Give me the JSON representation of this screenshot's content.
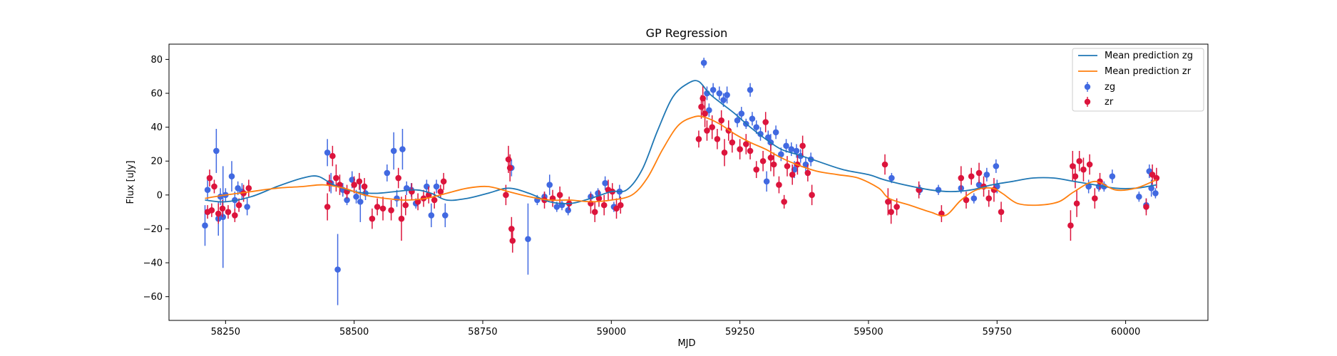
{
  "chart_data": {
    "type": "scatter",
    "title": "GP Regression",
    "xlabel": "MJD",
    "ylabel": "Flux [uJy]",
    "xlim": [
      58140,
      60160
    ],
    "ylim": [
      -74,
      89
    ],
    "xticks": [
      58250,
      58500,
      58750,
      59000,
      59250,
      59500,
      59750,
      60000
    ],
    "yticks": [
      -60,
      -40,
      -20,
      0,
      20,
      40,
      60,
      80
    ],
    "legend_position": "top-right",
    "grid": false,
    "colors": {
      "mean_zg": "#1f77b4",
      "mean_zr": "#ff7f0e",
      "zg": "#4169e1",
      "zr": "#dc143c"
    },
    "lines": [
      {
        "name": "Mean prediction zg",
        "color": "#1f77b4",
        "x": [
          58210,
          58250,
          58300,
          58350,
          58400,
          58430,
          58460,
          58500,
          58540,
          58580,
          58620,
          58650,
          58680,
          58720,
          58760,
          58800,
          58840,
          58880,
          58920,
          58960,
          59000,
          59030,
          59060,
          59090,
          59120,
          59150,
          59170,
          59190,
          59210,
          59240,
          59270,
          59300,
          59330,
          59360,
          59400,
          59450,
          59500,
          59530,
          59570,
          59620,
          59660,
          59700,
          59740,
          59780,
          59820,
          59860,
          59900,
          59940,
          59980,
          60020,
          60060
        ],
        "y": [
          -3,
          -4,
          -1,
          5,
          10,
          11,
          6,
          2,
          1,
          2,
          3,
          1,
          -3,
          -2,
          1,
          4,
          1,
          -4,
          -5,
          -2,
          2,
          3,
          15,
          38,
          58,
          66,
          67,
          60,
          55,
          48,
          40,
          33,
          27,
          24,
          20,
          15,
          12,
          9,
          6,
          3,
          2,
          3,
          6,
          8,
          10,
          10,
          8,
          6,
          4,
          4,
          6
        ]
      },
      {
        "name": "Mean prediction zr",
        "color": "#ff7f0e",
        "x": [
          58210,
          58250,
          58300,
          58350,
          58400,
          58440,
          58480,
          58520,
          58560,
          58600,
          58640,
          58680,
          58720,
          58760,
          58800,
          58840,
          58880,
          58920,
          58960,
          59000,
          59040,
          59070,
          59100,
          59130,
          59160,
          59180,
          59210,
          59240,
          59270,
          59300,
          59330,
          59360,
          59400,
          59440,
          59480,
          59520,
          59540,
          59580,
          59620,
          59650,
          59680,
          59710,
          59740,
          59760,
          59790,
          59830,
          59870,
          59900,
          59940,
          59980,
          60020,
          60060
        ],
        "y": [
          -2,
          0,
          2,
          4,
          5,
          6,
          4,
          0,
          -2,
          -3,
          -2,
          1,
          4,
          5,
          2,
          -1,
          -3,
          -3,
          -4,
          -3,
          0,
          10,
          27,
          41,
          46,
          46,
          42,
          36,
          31,
          27,
          22,
          18,
          14,
          12,
          10,
          4,
          -2,
          -6,
          -10,
          -12,
          -3,
          3,
          4,
          1,
          -5,
          -6,
          -4,
          2,
          8,
          3,
          4,
          9
        ]
      }
    ],
    "series": [
      {
        "name": "zg",
        "color": "#4169e1",
        "points": [
          [
            58210,
            -18,
            12
          ],
          [
            58215,
            3,
            6
          ],
          [
            58232,
            26,
            13
          ],
          [
            58236,
            -14,
            10
          ],
          [
            58240,
            -1,
            5
          ],
          [
            58245,
            -13,
            30
          ],
          [
            58250,
            0,
            4
          ],
          [
            58262,
            11,
            9
          ],
          [
            58268,
            -3,
            5
          ],
          [
            58274,
            4,
            4
          ],
          [
            58282,
            2,
            5
          ],
          [
            58292,
            -7,
            5
          ],
          [
            58448,
            25,
            8
          ],
          [
            58455,
            7,
            6
          ],
          [
            58468,
            -44,
            21
          ],
          [
            58478,
            3,
            4
          ],
          [
            58486,
            -3,
            3
          ],
          [
            58496,
            9,
            5
          ],
          [
            58504,
            -1,
            4
          ],
          [
            58512,
            -4,
            12
          ],
          [
            58522,
            1,
            4
          ],
          [
            58564,
            13,
            5
          ],
          [
            58577,
            26,
            11
          ],
          [
            58583,
            -2,
            5
          ],
          [
            58594,
            27,
            12
          ],
          [
            58602,
            4,
            4
          ],
          [
            58611,
            3,
            4
          ],
          [
            58620,
            -5,
            3
          ],
          [
            58641,
            5,
            4
          ],
          [
            58650,
            -12,
            7
          ],
          [
            58660,
            5,
            4
          ],
          [
            58677,
            -12,
            7
          ],
          [
            58806,
            16,
            5
          ],
          [
            58838,
            -26,
            21
          ],
          [
            58856,
            -3,
            3
          ],
          [
            58870,
            -1,
            3
          ],
          [
            58880,
            6,
            6
          ],
          [
            58894,
            -7,
            3
          ],
          [
            58904,
            -6,
            3
          ],
          [
            58916,
            -9,
            3
          ],
          [
            58960,
            -1,
            3
          ],
          [
            58974,
            1,
            3
          ],
          [
            58988,
            7,
            4
          ],
          [
            59005,
            -7,
            3
          ],
          [
            59016,
            2,
            4
          ],
          [
            59180,
            78,
            3
          ],
          [
            59186,
            60,
            4
          ],
          [
            59190,
            50,
            4
          ],
          [
            59198,
            62,
            4
          ],
          [
            59210,
            60,
            4
          ],
          [
            59218,
            56,
            4
          ],
          [
            59225,
            59,
            5
          ],
          [
            59245,
            44,
            4
          ],
          [
            59253,
            48,
            4
          ],
          [
            59262,
            42,
            3
          ],
          [
            59270,
            62,
            4
          ],
          [
            59274,
            45,
            4
          ],
          [
            59282,
            40,
            4
          ],
          [
            59290,
            36,
            4
          ],
          [
            59302,
            8,
            6
          ],
          [
            59305,
            34,
            4
          ],
          [
            59310,
            31,
            5
          ],
          [
            59320,
            37,
            4
          ],
          [
            59330,
            24,
            4
          ],
          [
            59340,
            29,
            4
          ],
          [
            59350,
            27,
            4
          ],
          [
            59356,
            15,
            5
          ],
          [
            59360,
            26,
            4
          ],
          [
            59368,
            23,
            4
          ],
          [
            59378,
            18,
            4
          ],
          [
            59388,
            21,
            4
          ],
          [
            59545,
            10,
            3
          ],
          [
            59600,
            3,
            3
          ],
          [
            59636,
            3,
            3
          ],
          [
            59680,
            4,
            3
          ],
          [
            59705,
            -2,
            3
          ],
          [
            59715,
            6,
            3
          ],
          [
            59730,
            12,
            4
          ],
          [
            59748,
            17,
            4
          ],
          [
            59750,
            5,
            4
          ],
          [
            59928,
            5,
            4
          ],
          [
            59948,
            5,
            3
          ],
          [
            59958,
            5,
            3
          ],
          [
            59974,
            11,
            4
          ],
          [
            60026,
            -1,
            3
          ],
          [
            60040,
            -6,
            4
          ],
          [
            60046,
            14,
            4
          ],
          [
            60050,
            4,
            5
          ],
          [
            60058,
            1,
            3
          ]
        ]
      },
      {
        "name": "zr",
        "color": "#dc143c",
        "points": [
          [
            58215,
            -10,
            4
          ],
          [
            58219,
            10,
            5
          ],
          [
            58223,
            -9,
            4
          ],
          [
            58228,
            5,
            4
          ],
          [
            58236,
            -11,
            6
          ],
          [
            58244,
            -8,
            5
          ],
          [
            58255,
            -10,
            4
          ],
          [
            58268,
            -12,
            4
          ],
          [
            58276,
            -6,
            4
          ],
          [
            58285,
            1,
            5
          ],
          [
            58295,
            4,
            5
          ],
          [
            58448,
            -7,
            8
          ],
          [
            58452,
            7,
            5
          ],
          [
            58458,
            23,
            6
          ],
          [
            58465,
            10,
            8
          ],
          [
            58472,
            6,
            6
          ],
          [
            58486,
            2,
            4
          ],
          [
            58500,
            6,
            5
          ],
          [
            58510,
            8,
            5
          ],
          [
            58520,
            5,
            5
          ],
          [
            58535,
            -14,
            6
          ],
          [
            58545,
            -7,
            5
          ],
          [
            58556,
            -8,
            7
          ],
          [
            58572,
            -9,
            6
          ],
          [
            58586,
            10,
            6
          ],
          [
            58592,
            -14,
            13
          ],
          [
            58600,
            -6,
            6
          ],
          [
            58612,
            2,
            5
          ],
          [
            58624,
            -4,
            5
          ],
          [
            58635,
            -2,
            5
          ],
          [
            58645,
            0,
            5
          ],
          [
            58656,
            -3,
            5
          ],
          [
            58668,
            2,
            4
          ],
          [
            58674,
            8,
            5
          ],
          [
            58795,
            0,
            6
          ],
          [
            58800,
            21,
            8
          ],
          [
            58803,
            16,
            8
          ],
          [
            58806,
            -20,
            7
          ],
          [
            58808,
            -27,
            7
          ],
          [
            58870,
            -3,
            5
          ],
          [
            58886,
            -2,
            5
          ],
          [
            58900,
            0,
            5
          ],
          [
            58918,
            -5,
            4
          ],
          [
            58960,
            -5,
            6
          ],
          [
            58968,
            -10,
            6
          ],
          [
            58976,
            -2,
            5
          ],
          [
            58986,
            -6,
            6
          ],
          [
            58994,
            3,
            6
          ],
          [
            59002,
            2,
            5
          ],
          [
            59010,
            -8,
            6
          ],
          [
            59018,
            -6,
            5
          ],
          [
            59170,
            33,
            5
          ],
          [
            59175,
            52,
            7
          ],
          [
            59178,
            57,
            8
          ],
          [
            59182,
            48,
            8
          ],
          [
            59186,
            38,
            6
          ],
          [
            59196,
            40,
            7
          ],
          [
            59206,
            33,
            6
          ],
          [
            59214,
            44,
            6
          ],
          [
            59220,
            25,
            8
          ],
          [
            59228,
            38,
            6
          ],
          [
            59235,
            31,
            6
          ],
          [
            59250,
            27,
            6
          ],
          [
            59262,
            30,
            6
          ],
          [
            59270,
            26,
            5
          ],
          [
            59282,
            15,
            5
          ],
          [
            59295,
            20,
            6
          ],
          [
            59300,
            43,
            6
          ],
          [
            59310,
            22,
            8
          ],
          [
            59316,
            18,
            7
          ],
          [
            59326,
            6,
            5
          ],
          [
            59336,
            -4,
            4
          ],
          [
            59342,
            17,
            6
          ],
          [
            59352,
            12,
            6
          ],
          [
            59362,
            18,
            6
          ],
          [
            59372,
            29,
            6
          ],
          [
            59382,
            13,
            5
          ],
          [
            59390,
            0,
            6
          ],
          [
            59532,
            18,
            6
          ],
          [
            59538,
            -4,
            8
          ],
          [
            59544,
            -10,
            7
          ],
          [
            59555,
            -7,
            5
          ],
          [
            59598,
            3,
            5
          ],
          [
            59642,
            -11,
            5
          ],
          [
            59680,
            10,
            7
          ],
          [
            59690,
            -3,
            5
          ],
          [
            59700,
            11,
            5
          ],
          [
            59715,
            13,
            6
          ],
          [
            59724,
            5,
            6
          ],
          [
            59734,
            -2,
            5
          ],
          [
            59744,
            3,
            7
          ],
          [
            59758,
            -10,
            6
          ],
          [
            59893,
            -18,
            9
          ],
          [
            59897,
            17,
            9
          ],
          [
            59902,
            11,
            7
          ],
          [
            59905,
            -5,
            8
          ],
          [
            59910,
            20,
            6
          ],
          [
            59918,
            15,
            7
          ],
          [
            59930,
            18,
            6
          ],
          [
            59940,
            -2,
            6
          ],
          [
            59950,
            8,
            5
          ],
          [
            60040,
            -7,
            5
          ],
          [
            60052,
            12,
            6
          ],
          [
            60060,
            10,
            6
          ]
        ]
      }
    ]
  }
}
